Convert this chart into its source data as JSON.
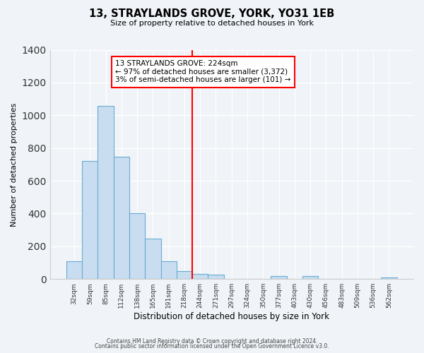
{
  "title": "13, STRAYLANDS GROVE, YORK, YO31 1EB",
  "subtitle": "Size of property relative to detached houses in York",
  "xlabel": "Distribution of detached houses by size in York",
  "ylabel": "Number of detached properties",
  "bar_labels": [
    "32sqm",
    "59sqm",
    "85sqm",
    "112sqm",
    "138sqm",
    "165sqm",
    "191sqm",
    "218sqm",
    "244sqm",
    "271sqm",
    "297sqm",
    "324sqm",
    "350sqm",
    "377sqm",
    "403sqm",
    "430sqm",
    "456sqm",
    "483sqm",
    "509sqm",
    "536sqm",
    "562sqm"
  ],
  "bar_values": [
    107,
    720,
    1057,
    748,
    400,
    245,
    110,
    47,
    30,
    27,
    0,
    0,
    0,
    20,
    0,
    20,
    0,
    0,
    0,
    0,
    10
  ],
  "bar_color": "#c8ddef",
  "bar_edge_color": "#6aaad4",
  "vline_color": "red",
  "vline_pos": 7.5,
  "annotation_title": "13 STRAYLANDS GROVE: 224sqm",
  "annotation_line1": "← 97% of detached houses are smaller (3,372)",
  "annotation_line2": "3% of semi-detached houses are larger (101) →",
  "annotation_box_color": "white",
  "annotation_box_edge": "red",
  "ylim": [
    0,
    1400
  ],
  "yticks": [
    0,
    200,
    400,
    600,
    800,
    1000,
    1200,
    1400
  ],
  "footer1": "Contains HM Land Registry data © Crown copyright and database right 2024.",
  "footer2": "Contains public sector information licensed under the Open Government Licence v3.0.",
  "background_color": "#f0f4f8"
}
